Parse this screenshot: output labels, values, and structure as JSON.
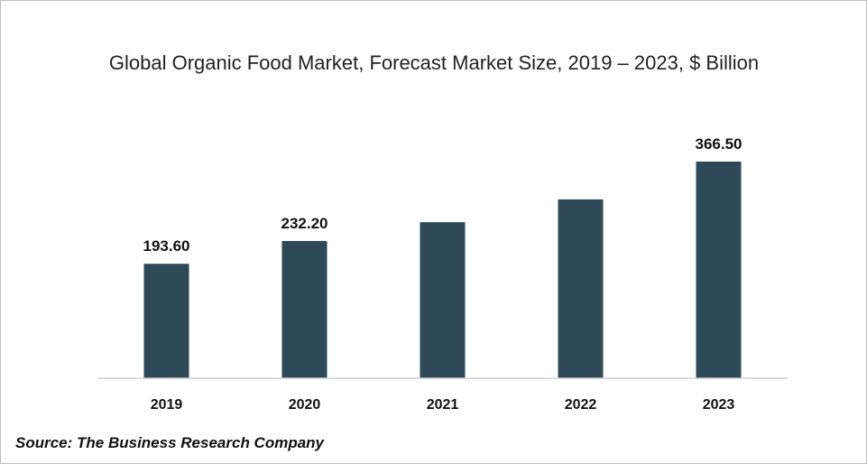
{
  "chart_data": {
    "type": "bar",
    "title": "Global Organic Food Market, Forecast Market Size, 2019 – 2023, $ Billion",
    "categories": [
      "2019",
      "2020",
      "2021",
      "2022",
      "2023"
    ],
    "values": [
      193.6,
      232.2,
      264.0,
      302.6,
      366.5
    ],
    "data_labels": [
      "193.60",
      "232.20",
      "",
      "",
      "366.50"
    ],
    "xlabel": "",
    "ylabel": "",
    "ylim": [
      0,
      420
    ],
    "grid": false,
    "legend": "none",
    "bar_color": "#2e4a59"
  },
  "footer": {
    "source": "Source: The Business Research Company"
  }
}
